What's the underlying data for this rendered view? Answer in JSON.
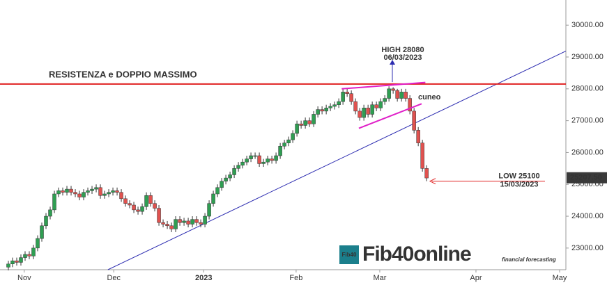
{
  "chart_data": {
    "type": "candlestick",
    "xlim": [
      -2,
      133.3
    ],
    "xticks": [
      {
        "value": 3.8,
        "label": "Nov"
      },
      {
        "value": 25.2,
        "label": "Dec"
      },
      {
        "value": 46.7,
        "label": "2023"
      },
      {
        "value": 68.8,
        "label": "Feb"
      },
      {
        "value": 88.8,
        "label": "Mar"
      },
      {
        "value": 111.8,
        "label": "Apr"
      },
      {
        "value": 131.8,
        "label": "May"
      }
    ],
    "ylim": [
      22320,
      30790
    ],
    "yticks": [
      {
        "value": 23000,
        "label": "23000.00"
      },
      {
        "value": 24000,
        "label": "24000.00"
      },
      {
        "value": 25000,
        "label": "25000.00"
      },
      {
        "value": 26000,
        "label": "26000.00"
      },
      {
        "value": 27000,
        "label": "27000.00"
      },
      {
        "value": 28000,
        "label": "28000.00"
      },
      {
        "value": 29000,
        "label": "29000.00"
      },
      {
        "value": 30000,
        "label": "30000.00"
      }
    ],
    "up_color": "#2f9e52",
    "down_color": "#e0524f",
    "open": [
      22400,
      22500,
      22600,
      22550,
      22700,
      22800,
      22750,
      23000,
      23300,
      23700,
      24000,
      24200,
      24700,
      24800,
      24750,
      24850,
      24750,
      24700,
      24600,
      24750,
      24800,
      24850,
      24900,
      24650,
      24700,
      24750,
      24800,
      24750,
      24550,
      24400,
      24350,
      24200,
      24150,
      24300,
      24650,
      24400,
      24250,
      23800,
      23750,
      23700,
      23600,
      23900,
      23800,
      23850,
      23750,
      23900,
      23800,
      23750,
      24000,
      24400,
      24700,
      24900,
      25100,
      25200,
      25300,
      25500,
      25600,
      25700,
      25800,
      25900,
      25900,
      25650,
      25700,
      25800,
      25750,
      25900,
      26200,
      26300,
      26400,
      26600,
      26900,
      26850,
      27000,
      26900,
      27200,
      27350,
      27300,
      27400,
      27450,
      27500,
      27600,
      27900,
      27850,
      27600,
      27300,
      27100,
      27400,
      27200,
      27500,
      27400,
      27600,
      27700,
      28000,
      27950,
      27700,
      27900,
      27700,
      27300,
      26700,
      26300,
      25500
    ],
    "high": [
      22600,
      22700,
      22700,
      22800,
      22900,
      22900,
      23100,
      23400,
      23800,
      24100,
      24300,
      24800,
      24900,
      24900,
      24950,
      24950,
      24850,
      24800,
      24850,
      24900,
      24950,
      25000,
      25000,
      24800,
      24850,
      24900,
      24900,
      24850,
      24650,
      24500,
      24450,
      24300,
      24400,
      24750,
      24750,
      24500,
      24350,
      23900,
      23850,
      23800,
      24000,
      24000,
      23950,
      23950,
      24000,
      24000,
      23900,
      24100,
      24500,
      24800,
      25000,
      25200,
      25300,
      25400,
      25600,
      25700,
      25800,
      25900,
      26000,
      26000,
      26000,
      25800,
      25900,
      25900,
      26000,
      26300,
      26400,
      26500,
      26700,
      27000,
      27000,
      27100,
      27100,
      27300,
      27450,
      27450,
      27500,
      27550,
      27600,
      27700,
      28000,
      28000,
      27950,
      27700,
      27400,
      27500,
      27500,
      27600,
      27600,
      27700,
      27800,
      28080,
      28050,
      28000,
      28000,
      28000,
      27800,
      27400,
      26800,
      26400,
      25600
    ],
    "low": [
      22300,
      22400,
      22450,
      22450,
      22600,
      22650,
      22650,
      22900,
      23200,
      23600,
      23900,
      24100,
      24600,
      24650,
      24650,
      24650,
      24600,
      24500,
      24500,
      24650,
      24700,
      24750,
      24550,
      24550,
      24600,
      24650,
      24650,
      24450,
      24300,
      24250,
      24100,
      24050,
      24050,
      24200,
      24300,
      24150,
      23700,
      23650,
      23600,
      23500,
      23500,
      23700,
      23700,
      23650,
      23650,
      23700,
      23650,
      23650,
      23900,
      24300,
      24600,
      24800,
      25000,
      25100,
      25200,
      25400,
      25500,
      25600,
      25700,
      25800,
      25550,
      25550,
      25600,
      25650,
      25650,
      25800,
      26100,
      26200,
      26300,
      26500,
      26750,
      26750,
      26800,
      26800,
      27100,
      27200,
      27200,
      27300,
      27350,
      27400,
      27500,
      27750,
      27500,
      27200,
      27000,
      27000,
      27100,
      27100,
      27300,
      27300,
      27500,
      27600,
      27850,
      27600,
      27600,
      27600,
      27200,
      26600,
      26200,
      25400,
      25100
    ],
    "close": [
      22500,
      22600,
      22550,
      22700,
      22800,
      22750,
      23000,
      23300,
      23700,
      24000,
      24200,
      24700,
      24800,
      24750,
      24850,
      24750,
      24700,
      24600,
      24750,
      24800,
      24850,
      24900,
      24650,
      24700,
      24750,
      24800,
      24750,
      24550,
      24400,
      24350,
      24200,
      24150,
      24300,
      24650,
      24400,
      24250,
      23800,
      23750,
      23700,
      23600,
      23900,
      23800,
      23850,
      23750,
      23900,
      23800,
      23750,
      24000,
      24400,
      24700,
      24900,
      25100,
      25200,
      25300,
      25500,
      25600,
      25700,
      25800,
      25900,
      25900,
      25650,
      25700,
      25800,
      25750,
      25900,
      26200,
      26300,
      26400,
      26600,
      26900,
      26850,
      27000,
      26900,
      27200,
      27350,
      27300,
      27400,
      27450,
      27500,
      27600,
      27900,
      27850,
      27600,
      27300,
      27100,
      27400,
      27200,
      27500,
      27400,
      27600,
      27700,
      28000,
      27950,
      27700,
      27900,
      27700,
      27300,
      26700,
      26300,
      25500,
      25200
    ],
    "resistance": {
      "value": 28150,
      "label": "RESISTENZA e DOPPIO MASSIMO",
      "color": "#e02020"
    },
    "trendline": {
      "x": [
        23.8,
        133.3
      ],
      "y": [
        22320,
        29186
      ],
      "color": "#2b2bb0"
    },
    "wedge": {
      "color": "#e020c8",
      "label": "cuneo",
      "lines": [
        {
          "x": [
            79.7,
            99.7
          ],
          "y": [
            28000,
            28200
          ]
        },
        {
          "x": [
            83.8,
            98.8
          ],
          "y": [
            26760,
            27530
          ]
        }
      ]
    },
    "high_note": {
      "label": "HIGH 28080",
      "date": "06/03/2023",
      "value": 28080,
      "color": "#2b2bb0"
    },
    "low_note": {
      "label": "LOW 25100",
      "date": "15/03/2023",
      "value": 25100,
      "color": "#e02020"
    },
    "last_price": {
      "value": 25207.5,
      "label": "25207.50"
    },
    "logo": {
      "badge": "Fib40",
      "name": "Fib40online",
      "tagline": "financial forecasting"
    }
  }
}
